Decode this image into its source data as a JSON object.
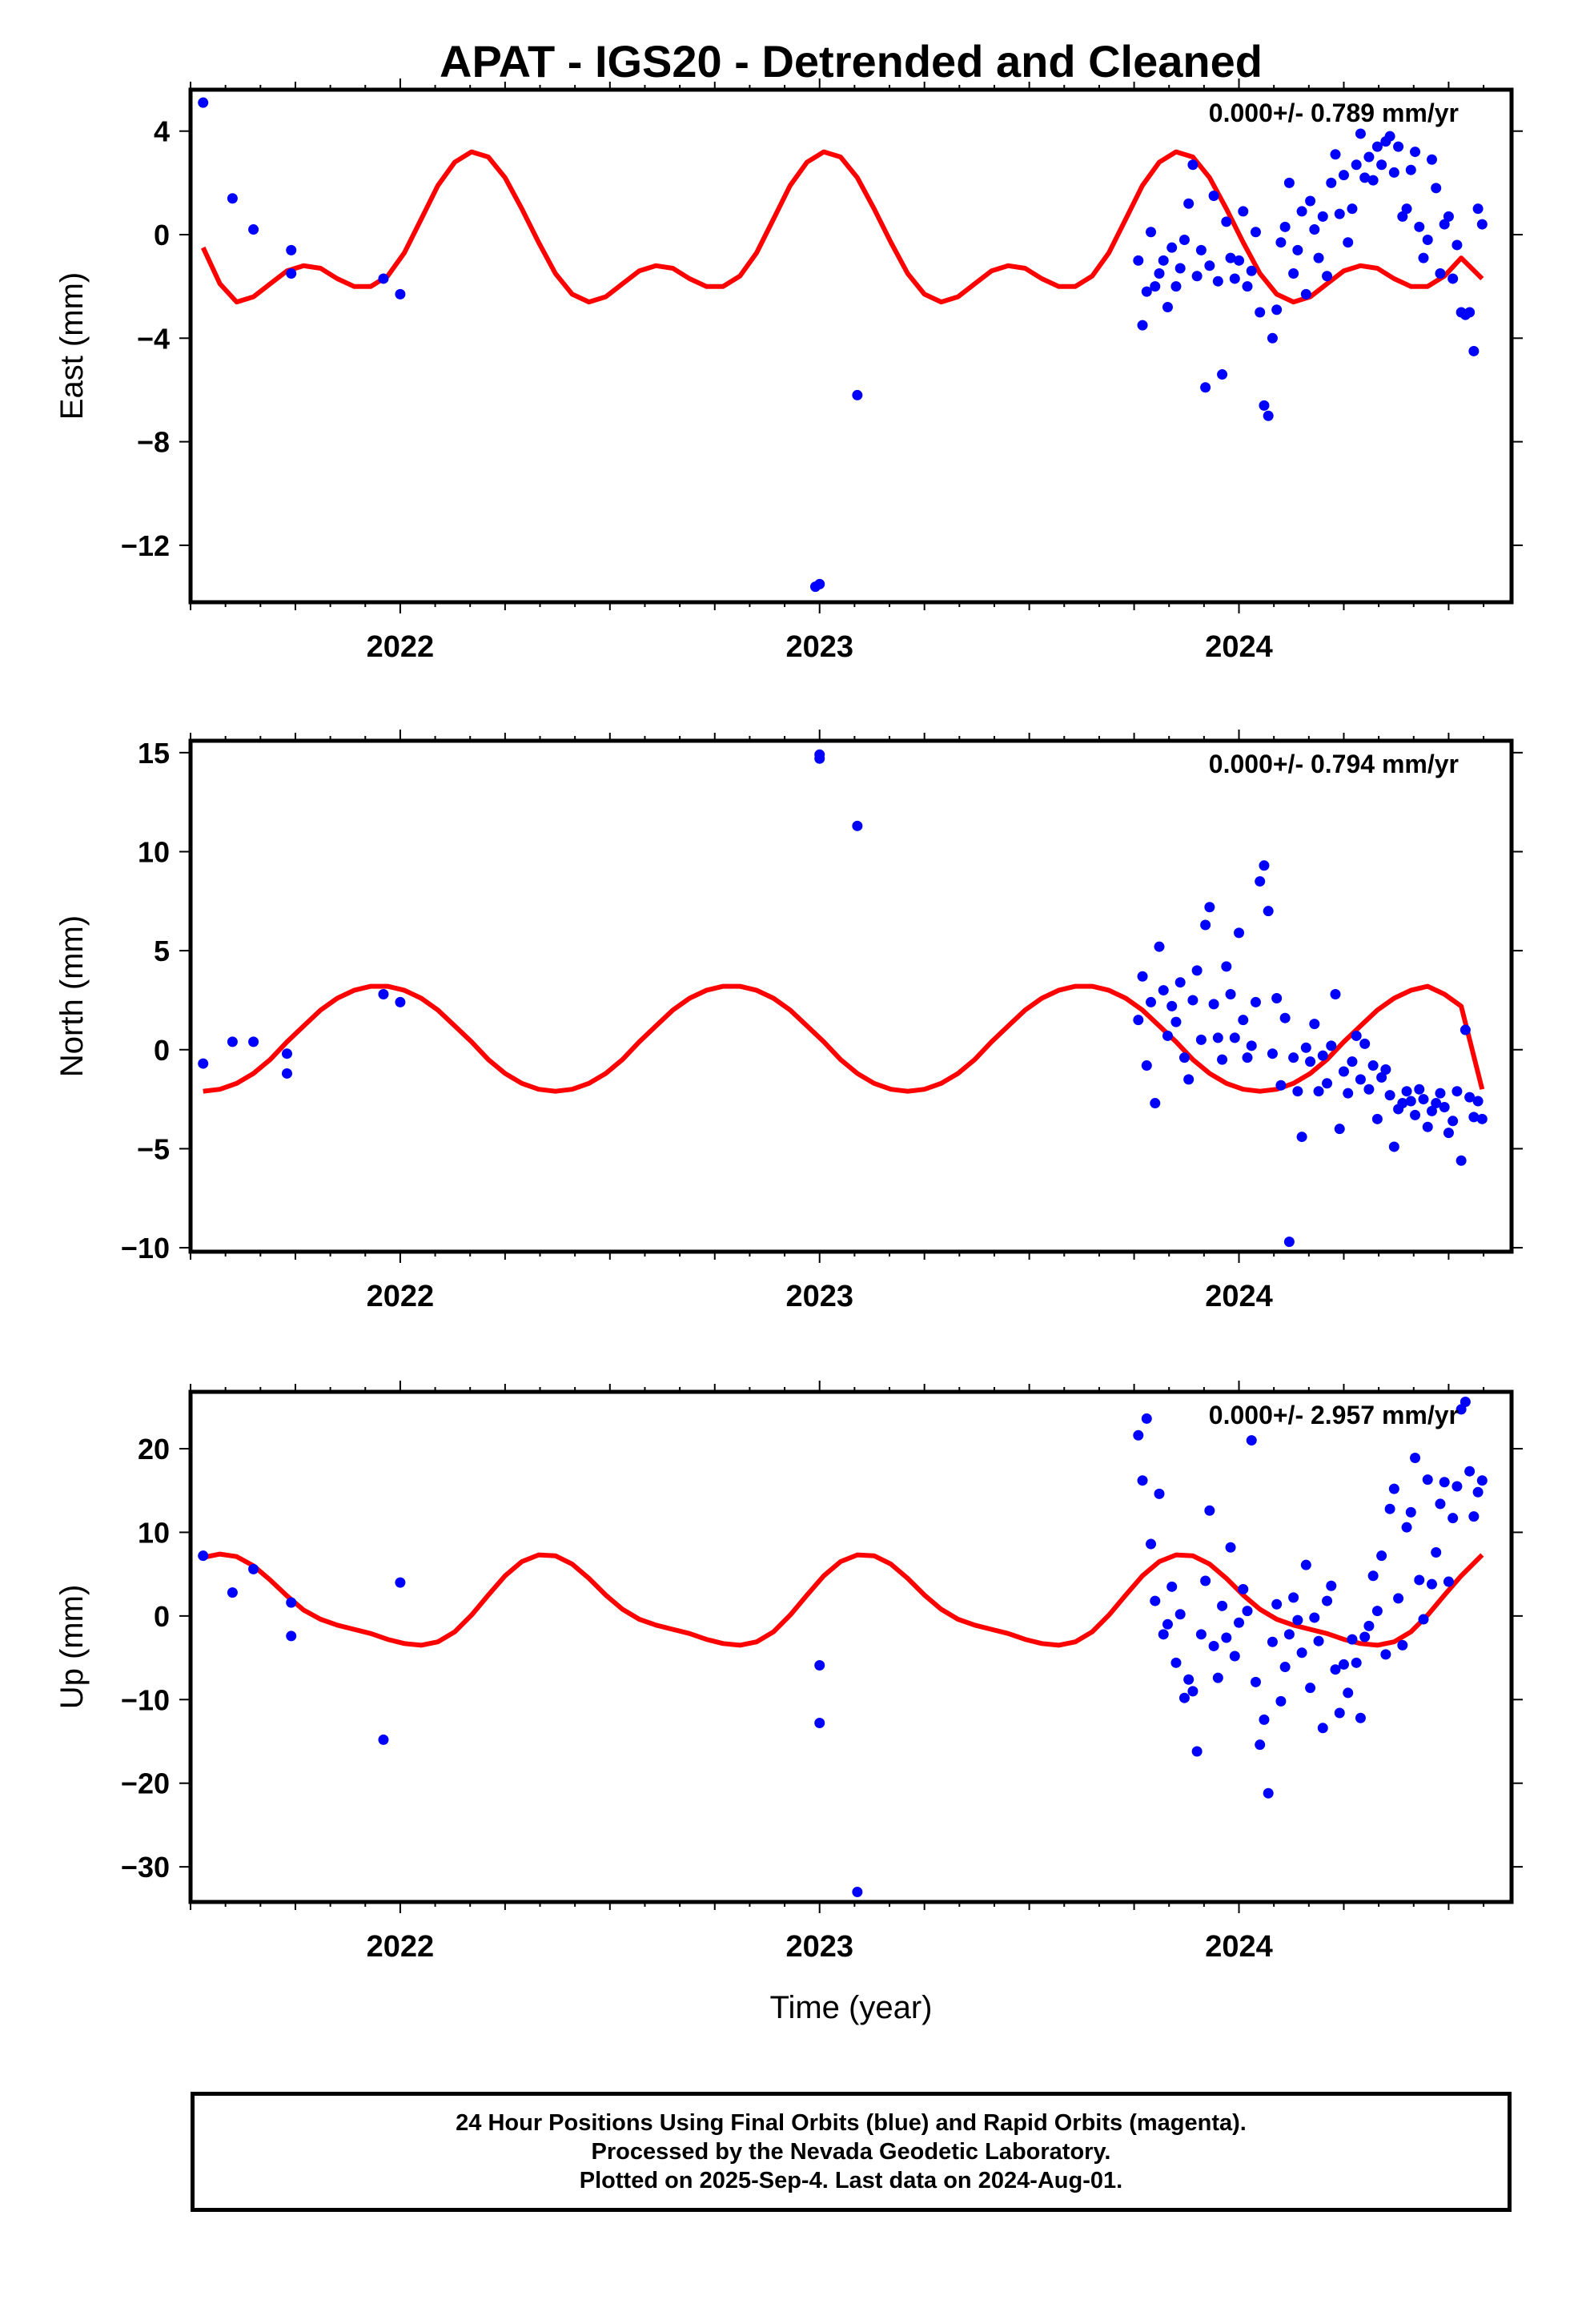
{
  "title": "APAT - IGS20 - Detrended and Cleaned",
  "xlabel": "Time (year)",
  "footer": {
    "line1": "24 Hour Positions Using Final Orbits (blue) and Rapid Orbits (magenta).",
    "line2": "Processed by the Nevada Geodetic Laboratory.",
    "line3": "Plotted on 2025-Sep-4. Last data on 2024-Aug-01."
  },
  "colors": {
    "points": "#0000ff",
    "model": "#ff0000",
    "axis": "#000000"
  },
  "chart_data": [
    {
      "type": "scatter",
      "name": "east",
      "ylabel": "East (mm)",
      "rate_text": "0.000+/- 0.789 mm/yr",
      "xlim": [
        2021.5,
        2024.65
      ],
      "ylim": [
        -14.2,
        5.6
      ],
      "x_ticks": [
        2022,
        2023,
        2024
      ],
      "y_ticks": [
        4,
        0,
        -4,
        -8,
        -12
      ],
      "model": {
        "type": "line",
        "color": "#ff0000",
        "x": [
          2021.53,
          2021.57,
          2021.61,
          2021.65,
          2021.69,
          2021.73,
          2021.77,
          2021.81,
          2021.85,
          2021.89,
          2021.93,
          2021.97,
          2022.01,
          2022.05,
          2022.09,
          2022.13,
          2022.17,
          2022.21,
          2022.25,
          2022.29,
          2022.33,
          2022.37,
          2022.41,
          2022.45,
          2022.49,
          2022.53,
          2022.57,
          2022.61,
          2022.65,
          2022.69,
          2022.73,
          2022.77,
          2022.81,
          2022.85,
          2022.89,
          2022.93,
          2022.97,
          2023.01,
          2023.05,
          2023.09,
          2023.13,
          2023.17,
          2023.21,
          2023.25,
          2023.29,
          2023.33,
          2023.37,
          2023.41,
          2023.45,
          2023.49,
          2023.53,
          2023.57,
          2023.61,
          2023.65,
          2023.69,
          2023.73,
          2023.77,
          2023.81,
          2023.85,
          2023.89,
          2023.93,
          2023.97,
          2024.01,
          2024.05,
          2024.09,
          2024.13,
          2024.17,
          2024.21,
          2024.25,
          2024.29,
          2024.33,
          2024.37,
          2024.41,
          2024.45,
          2024.49,
          2024.53,
          2024.58
        ],
        "y": [
          -0.5,
          -1.9,
          -2.6,
          -2.4,
          -1.9,
          -1.4,
          -1.2,
          -1.3,
          -1.7,
          -2.0,
          -2.0,
          -1.6,
          -0.7,
          0.6,
          1.9,
          2.8,
          3.2,
          3.0,
          2.2,
          1.0,
          -0.3,
          -1.5,
          -2.3,
          -2.6,
          -2.4,
          -1.9,
          -1.4,
          -1.2,
          -1.3,
          -1.7,
          -2.0,
          -2.0,
          -1.6,
          -0.7,
          0.6,
          1.9,
          2.8,
          3.2,
          3.0,
          2.2,
          1.0,
          -0.3,
          -1.5,
          -2.3,
          -2.6,
          -2.4,
          -1.9,
          -1.4,
          -1.2,
          -1.3,
          -1.7,
          -2.0,
          -2.0,
          -1.6,
          -0.7,
          0.6,
          1.9,
          2.8,
          3.2,
          3.0,
          2.2,
          1.0,
          -0.3,
          -1.5,
          -2.3,
          -2.6,
          -2.4,
          -1.9,
          -1.4,
          -1.2,
          -1.3,
          -1.7,
          -2.0,
          -2.0,
          -1.6,
          -0.9,
          -1.7
        ]
      },
      "points": {
        "x": [
          2021.53,
          2021.6,
          2021.65,
          2021.74,
          2021.74,
          2021.96,
          2022.0,
          2022.99,
          2023.0,
          2023.09,
          2023.76,
          2023.77,
          2023.78,
          2023.79,
          2023.8,
          2023.81,
          2023.82,
          2023.83,
          2023.84,
          2023.85,
          2023.86,
          2023.87,
          2023.88,
          2023.89,
          2023.9,
          2023.91,
          2023.92,
          2023.93,
          2023.94,
          2023.95,
          2023.96,
          2023.97,
          2023.98,
          2023.99,
          2024.0,
          2024.01,
          2024.02,
          2024.03,
          2024.04,
          2024.05,
          2024.06,
          2024.07,
          2024.08,
          2024.09,
          2024.1,
          2024.11,
          2024.12,
          2024.13,
          2024.14,
          2024.15,
          2024.16,
          2024.17,
          2024.18,
          2024.19,
          2024.2,
          2024.21,
          2024.22,
          2024.23,
          2024.24,
          2024.25,
          2024.26,
          2024.27,
          2024.28,
          2024.29,
          2024.3,
          2024.31,
          2024.32,
          2024.33,
          2024.34,
          2024.35,
          2024.36,
          2024.37,
          2024.38,
          2024.39,
          2024.4,
          2024.41,
          2024.42,
          2024.43,
          2024.44,
          2024.45,
          2024.46,
          2024.47,
          2024.48,
          2024.49,
          2024.5,
          2024.51,
          2024.52,
          2024.53,
          2024.54,
          2024.55,
          2024.56,
          2024.57,
          2024.58
        ],
        "y": [
          5.1,
          1.4,
          0.2,
          -0.6,
          -1.5,
          -1.7,
          -2.3,
          -13.6,
          -13.5,
          -6.2,
          -1.0,
          -3.5,
          -2.2,
          0.1,
          -2.0,
          -1.5,
          -1.0,
          -2.8,
          -0.5,
          -2.0,
          -1.3,
          -0.2,
          1.2,
          2.7,
          -1.6,
          -0.6,
          -5.9,
          -1.2,
          1.5,
          -1.8,
          -5.4,
          0.5,
          -0.9,
          -1.7,
          -1.0,
          0.9,
          -2.0,
          -1.4,
          0.1,
          -3.0,
          -6.6,
          -7.0,
          -4.0,
          -2.9,
          -0.3,
          0.3,
          2.0,
          -1.5,
          -0.6,
          0.9,
          -2.3,
          1.3,
          0.2,
          -0.9,
          0.7,
          -1.6,
          2.0,
          3.1,
          0.8,
          2.3,
          -0.3,
          1.0,
          2.7,
          3.9,
          2.2,
          3.0,
          2.1,
          3.4,
          2.7,
          3.6,
          3.8,
          2.4,
          3.4,
          0.7,
          1.0,
          2.5,
          3.2,
          0.3,
          -0.9,
          -0.2,
          2.9,
          1.8,
          -1.5,
          0.4,
          0.7,
          -1.7,
          -0.4,
          -3.0,
          -3.1,
          -3.0,
          -4.5,
          1.0,
          0.4
        ]
      }
    },
    {
      "type": "scatter",
      "name": "north",
      "ylabel": "North (mm)",
      "rate_text": "0.000+/- 0.794 mm/yr",
      "xlim": [
        2021.5,
        2024.65
      ],
      "ylim": [
        -10.2,
        15.6
      ],
      "x_ticks": [
        2022,
        2023,
        2024
      ],
      "y_ticks": [
        15,
        10,
        5,
        0,
        -5,
        -10
      ],
      "model": {
        "type": "line",
        "color": "#ff0000",
        "x": [
          2021.53,
          2021.57,
          2021.61,
          2021.65,
          2021.69,
          2021.73,
          2021.77,
          2021.81,
          2021.85,
          2021.89,
          2021.93,
          2021.97,
          2022.01,
          2022.05,
          2022.09,
          2022.13,
          2022.17,
          2022.21,
          2022.25,
          2022.29,
          2022.33,
          2022.37,
          2022.41,
          2022.45,
          2022.49,
          2022.53,
          2022.57,
          2022.61,
          2022.65,
          2022.69,
          2022.73,
          2022.77,
          2022.81,
          2022.85,
          2022.89,
          2022.93,
          2022.97,
          2023.01,
          2023.05,
          2023.09,
          2023.13,
          2023.17,
          2023.21,
          2023.25,
          2023.29,
          2023.33,
          2023.37,
          2023.41,
          2023.45,
          2023.49,
          2023.53,
          2023.57,
          2023.61,
          2023.65,
          2023.69,
          2023.73,
          2023.77,
          2023.81,
          2023.85,
          2023.89,
          2023.93,
          2023.97,
          2024.01,
          2024.05,
          2024.09,
          2024.13,
          2024.17,
          2024.21,
          2024.25,
          2024.29,
          2024.33,
          2024.37,
          2024.41,
          2024.45,
          2024.49,
          2024.53,
          2024.58
        ],
        "y": [
          -2.1,
          -2.0,
          -1.7,
          -1.2,
          -0.5,
          0.4,
          1.2,
          2.0,
          2.6,
          3.0,
          3.2,
          3.2,
          3.0,
          2.6,
          2.0,
          1.2,
          0.4,
          -0.5,
          -1.2,
          -1.7,
          -2.0,
          -2.1,
          -2.0,
          -1.7,
          -1.2,
          -0.5,
          0.4,
          1.2,
          2.0,
          2.6,
          3.0,
          3.2,
          3.2,
          3.0,
          2.6,
          2.0,
          1.2,
          0.4,
          -0.5,
          -1.2,
          -1.7,
          -2.0,
          -2.1,
          -2.0,
          -1.7,
          -1.2,
          -0.5,
          0.4,
          1.2,
          2.0,
          2.6,
          3.0,
          3.2,
          3.2,
          3.0,
          2.6,
          2.0,
          1.2,
          0.4,
          -0.5,
          -1.2,
          -1.7,
          -2.0,
          -2.1,
          -2.0,
          -1.7,
          -1.2,
          -0.5,
          0.4,
          1.2,
          2.0,
          2.6,
          3.0,
          3.2,
          2.8,
          2.2,
          -2.0
        ]
      },
      "points": {
        "x": [
          2021.53,
          2021.6,
          2021.65,
          2021.73,
          2021.73,
          2021.96,
          2022.0,
          2023.0,
          2023.0,
          2023.09,
          2023.76,
          2023.77,
          2023.78,
          2023.79,
          2023.8,
          2023.81,
          2023.82,
          2023.83,
          2023.84,
          2023.85,
          2023.86,
          2023.87,
          2023.88,
          2023.89,
          2023.9,
          2023.91,
          2023.92,
          2023.93,
          2023.94,
          2023.95,
          2023.96,
          2023.97,
          2023.98,
          2023.99,
          2024.0,
          2024.01,
          2024.02,
          2024.03,
          2024.04,
          2024.05,
          2024.06,
          2024.07,
          2024.08,
          2024.09,
          2024.1,
          2024.11,
          2024.12,
          2024.13,
          2024.14,
          2024.15,
          2024.16,
          2024.17,
          2024.18,
          2024.19,
          2024.2,
          2024.21,
          2024.22,
          2024.23,
          2024.24,
          2024.25,
          2024.26,
          2024.27,
          2024.28,
          2024.29,
          2024.3,
          2024.31,
          2024.32,
          2024.33,
          2024.34,
          2024.35,
          2024.36,
          2024.37,
          2024.38,
          2024.39,
          2024.4,
          2024.41,
          2024.42,
          2024.43,
          2024.44,
          2024.45,
          2024.46,
          2024.47,
          2024.48,
          2024.49,
          2024.5,
          2024.51,
          2024.52,
          2024.53,
          2024.54,
          2024.55,
          2024.56,
          2024.57,
          2024.58
        ],
        "y": [
          -0.7,
          0.4,
          0.4,
          -0.2,
          -1.2,
          2.8,
          2.4,
          14.7,
          14.9,
          11.3,
          1.5,
          3.7,
          -0.8,
          2.4,
          -2.7,
          5.2,
          3.0,
          0.7,
          2.2,
          1.4,
          3.4,
          -0.4,
          -1.5,
          2.5,
          4.0,
          0.5,
          6.3,
          7.2,
          2.3,
          0.6,
          -0.5,
          4.2,
          2.8,
          0.6,
          5.9,
          1.5,
          -0.4,
          0.2,
          2.4,
          8.5,
          9.3,
          7.0,
          -0.2,
          2.6,
          -1.8,
          1.6,
          -9.7,
          -0.4,
          -2.1,
          -4.4,
          0.1,
          -0.6,
          1.3,
          -2.1,
          -0.3,
          -1.7,
          0.2,
          2.8,
          -4.0,
          -1.1,
          -2.2,
          -0.6,
          0.7,
          -1.5,
          0.3,
          -2.0,
          -0.8,
          -3.5,
          -1.4,
          -1.0,
          -2.3,
          -4.9,
          -3.0,
          -2.7,
          -2.1,
          -2.6,
          -3.3,
          -2.0,
          -2.5,
          -3.9,
          -3.1,
          -2.7,
          -2.2,
          -2.9,
          -4.2,
          -3.6,
          -2.1,
          -5.6,
          1.0,
          -2.4,
          -3.4,
          -2.6,
          -3.5
        ]
      }
    },
    {
      "type": "scatter",
      "name": "up",
      "ylabel": "Up (mm)",
      "rate_text": "0.000+/- 2.957 mm/yr",
      "xlim": [
        2021.5,
        2024.65
      ],
      "ylim": [
        -34.2,
        26.8
      ],
      "x_ticks": [
        2022,
        2023,
        2024
      ],
      "y_ticks": [
        20,
        10,
        0,
        -10,
        -20,
        -30
      ],
      "model": {
        "type": "line",
        "color": "#ff0000",
        "x": [
          2021.53,
          2021.57,
          2021.61,
          2021.65,
          2021.69,
          2021.73,
          2021.77,
          2021.81,
          2021.85,
          2021.89,
          2021.93,
          2021.97,
          2022.01,
          2022.05,
          2022.09,
          2022.13,
          2022.17,
          2022.21,
          2022.25,
          2022.29,
          2022.33,
          2022.37,
          2022.41,
          2022.45,
          2022.49,
          2022.53,
          2022.57,
          2022.61,
          2022.65,
          2022.69,
          2022.73,
          2022.77,
          2022.81,
          2022.85,
          2022.89,
          2022.93,
          2022.97,
          2023.01,
          2023.05,
          2023.09,
          2023.13,
          2023.17,
          2023.21,
          2023.25,
          2023.29,
          2023.33,
          2023.37,
          2023.41,
          2023.45,
          2023.49,
          2023.53,
          2023.57,
          2023.61,
          2023.65,
          2023.69,
          2023.73,
          2023.77,
          2023.81,
          2023.85,
          2023.89,
          2023.93,
          2023.97,
          2024.01,
          2024.05,
          2024.09,
          2024.13,
          2024.17,
          2024.21,
          2024.25,
          2024.29,
          2024.33,
          2024.37,
          2024.41,
          2024.45,
          2024.49,
          2024.53,
          2024.58
        ],
        "y": [
          7.0,
          7.4,
          7.1,
          6.0,
          4.3,
          2.4,
          0.7,
          -0.4,
          -1.1,
          -1.6,
          -2.1,
          -2.8,
          -3.3,
          -3.5,
          -3.1,
          -1.9,
          0.1,
          2.5,
          4.8,
          6.5,
          7.3,
          7.2,
          6.2,
          4.5,
          2.5,
          0.8,
          -0.4,
          -1.1,
          -1.6,
          -2.1,
          -2.8,
          -3.3,
          -3.5,
          -3.1,
          -1.9,
          0.1,
          2.5,
          4.8,
          6.5,
          7.3,
          7.2,
          6.2,
          4.5,
          2.5,
          0.8,
          -0.4,
          -1.1,
          -1.6,
          -2.1,
          -2.8,
          -3.3,
          -3.5,
          -3.1,
          -1.9,
          0.1,
          2.5,
          4.8,
          6.5,
          7.3,
          7.2,
          6.2,
          4.5,
          2.5,
          0.8,
          -0.4,
          -1.1,
          -1.6,
          -2.1,
          -2.8,
          -3.3,
          -3.5,
          -3.1,
          -1.9,
          0.1,
          2.5,
          4.8,
          7.3
        ]
      },
      "points": {
        "x": [
          2021.53,
          2021.6,
          2021.65,
          2021.74,
          2021.74,
          2021.96,
          2022.0,
          2023.0,
          2023.0,
          2023.09,
          2023.76,
          2023.77,
          2023.78,
          2023.79,
          2023.8,
          2023.81,
          2023.82,
          2023.83,
          2023.84,
          2023.85,
          2023.86,
          2023.87,
          2023.88,
          2023.89,
          2023.9,
          2023.91,
          2023.92,
          2023.93,
          2023.94,
          2023.95,
          2023.96,
          2023.97,
          2023.98,
          2023.99,
          2024.0,
          2024.01,
          2024.02,
          2024.03,
          2024.04,
          2024.05,
          2024.06,
          2024.07,
          2024.08,
          2024.09,
          2024.1,
          2024.11,
          2024.12,
          2024.13,
          2024.14,
          2024.15,
          2024.16,
          2024.17,
          2024.18,
          2024.19,
          2024.2,
          2024.21,
          2024.22,
          2024.23,
          2024.24,
          2024.25,
          2024.26,
          2024.27,
          2024.28,
          2024.29,
          2024.3,
          2024.31,
          2024.32,
          2024.33,
          2024.34,
          2024.35,
          2024.36,
          2024.37,
          2024.38,
          2024.39,
          2024.4,
          2024.41,
          2024.42,
          2024.43,
          2024.44,
          2024.45,
          2024.46,
          2024.47,
          2024.48,
          2024.49,
          2024.5,
          2024.51,
          2024.52,
          2024.53,
          2024.54,
          2024.55,
          2024.56,
          2024.57,
          2024.58
        ],
        "y": [
          7.2,
          2.8,
          5.6,
          1.6,
          -2.4,
          -14.8,
          4.0,
          -5.9,
          -12.8,
          -33.0,
          21.6,
          16.2,
          23.6,
          8.6,
          1.8,
          14.6,
          -2.2,
          -1.0,
          3.5,
          -5.6,
          0.2,
          -9.8,
          -7.6,
          -9.0,
          -16.2,
          -2.2,
          4.2,
          12.6,
          -3.6,
          -7.4,
          1.2,
          -2.6,
          8.2,
          -4.8,
          -0.8,
          3.2,
          0.6,
          21.0,
          -7.9,
          -15.4,
          -12.4,
          -21.2,
          -3.1,
          1.4,
          -10.2,
          -6.1,
          -2.2,
          2.2,
          -0.5,
          -4.4,
          6.1,
          -8.6,
          -0.2,
          -3.0,
          -13.4,
          1.8,
          3.6,
          -6.4,
          -11.6,
          -5.8,
          -9.2,
          -2.8,
          -5.6,
          -12.2,
          -2.5,
          -1.2,
          4.8,
          0.6,
          7.2,
          -4.6,
          12.8,
          15.2,
          2.1,
          -3.5,
          10.6,
          12.4,
          18.9,
          4.3,
          -0.4,
          16.3,
          3.8,
          7.6,
          13.4,
          16.0,
          4.1,
          11.7,
          15.5,
          24.7,
          25.6,
          17.3,
          11.9,
          14.8,
          16.2
        ]
      }
    }
  ]
}
